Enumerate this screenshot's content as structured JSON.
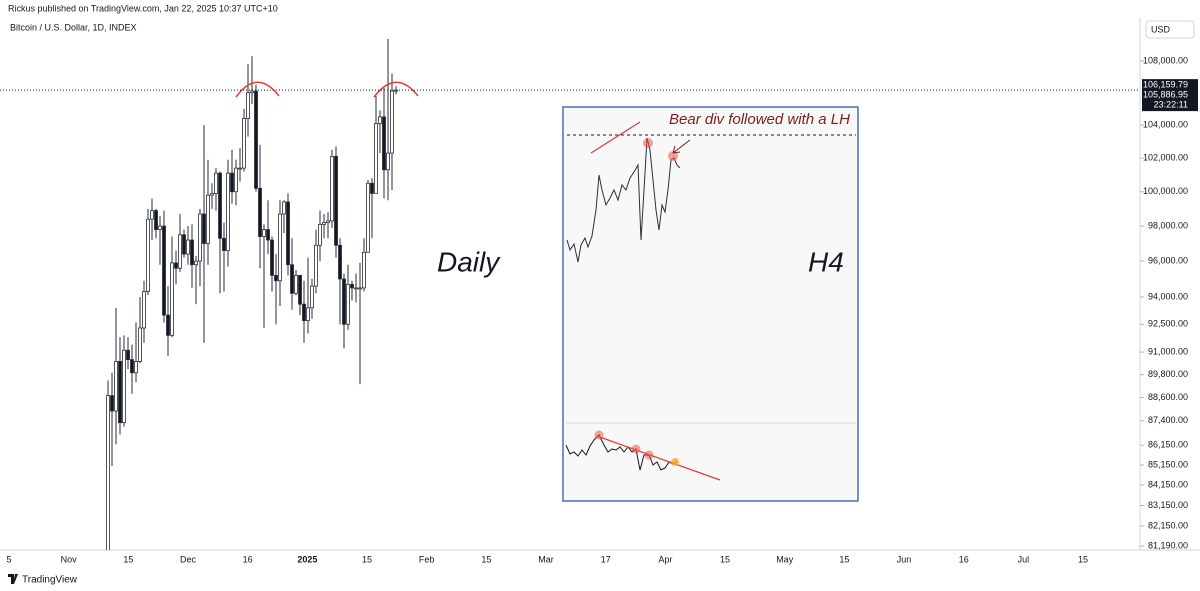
{
  "header": {
    "publisher": "Rickus published on TradingView.com, Jan 22, 2025 10:37 UTC+10",
    "symbol": "Bitcoin / U.S. Dollar, 1D, INDEX",
    "currency": "USD",
    "brand": "TradingView"
  },
  "chart_data": {
    "type": "candlestick",
    "annotations": {
      "daily": "Daily",
      "h4": "H4",
      "note": "Bear div followed with a LH"
    },
    "x_labels": [
      "5",
      "Nov",
      "15",
      "Dec",
      "16",
      "2025",
      "15",
      "Feb",
      "15",
      "Mar",
      "17",
      "Apr",
      "15",
      "May",
      "15",
      "Jun",
      "16",
      "Jul",
      "15"
    ],
    "log_scale": true,
    "ylim": [
      81000,
      110630
    ],
    "yticks": [
      {
        "value": 108000,
        "label": "108,000.00"
      },
      {
        "value": 104000,
        "label": "104,000.00"
      },
      {
        "value": 102000,
        "label": "102,000.00"
      },
      {
        "value": 100000,
        "label": "100,000.00"
      },
      {
        "value": 98000,
        "label": "98,000.00"
      },
      {
        "value": 96000,
        "label": "96,000.00"
      },
      {
        "value": 94000,
        "label": "94,000.00"
      },
      {
        "value": 92500,
        "label": "92,500.00"
      },
      {
        "value": 91000,
        "label": "91,000.00"
      },
      {
        "value": 89800,
        "label": "89,800.00"
      },
      {
        "value": 88600,
        "label": "88,600.00"
      },
      {
        "value": 87400,
        "label": "87,400.00"
      },
      {
        "value": 86150,
        "label": "86,150.00"
      },
      {
        "value": 85150,
        "label": "85,150.00"
      },
      {
        "value": 84150,
        "label": "84,150.00"
      },
      {
        "value": 83150,
        "label": "83,150.00"
      },
      {
        "value": 82150,
        "label": "82,150.00"
      },
      {
        "value": 81190,
        "label": "81,190.00"
      }
    ],
    "last_price": {
      "value": 106159.79,
      "label": "106,159.79"
    },
    "second_price": {
      "value": 105886.95,
      "label": "105,886.95"
    },
    "countdown": "23:22:11",
    "up_color": "#ffffff",
    "down_color": "#131722",
    "wick_color": "#2a2e39",
    "open": [
      80400,
      88700,
      87900,
      90500,
      87300,
      91100,
      90600,
      89900,
      90500,
      92300,
      94300,
      98400,
      98900,
      97800,
      98000,
      93000,
      91900,
      95900,
      95600,
      97500,
      96400,
      97200,
      95800,
      96000,
      98700,
      97000,
      99800,
      99900,
      101100,
      97300,
      96600,
      101100,
      100000,
      101400,
      101400,
      104400,
      106000,
      106100,
      100200,
      97400,
      97800,
      97200,
      95200,
      94900,
      98700,
      99400,
      95800,
      94200,
      95200,
      93600,
      92700,
      93400,
      94600,
      96900,
      98100,
      98200,
      98300,
      102100,
      96900,
      95000,
      92500,
      94700,
      94500,
      94500,
      94500,
      96500,
      100500,
      99900,
      104100,
      104500,
      101300,
      102300,
      106100
    ],
    "high": [
      89500,
      89900,
      93400,
      91800,
      91900,
      91800,
      91400,
      92600,
      94000,
      94900,
      99000,
      99600,
      99000,
      98600,
      98900,
      94600,
      97400,
      96600,
      98700,
      97800,
      98000,
      98100,
      96300,
      99000,
      104000,
      101900,
      100500,
      101400,
      101200,
      98200,
      101900,
      102500,
      101900,
      102600,
      105000,
      107800,
      108300,
      106500,
      102800,
      98100,
      99500,
      97400,
      96400,
      99500,
      99500,
      99900,
      97300,
      95500,
      95200,
      94900,
      96200,
      95000,
      97800,
      98900,
      98700,
      98800,
      102500,
      102700,
      97300,
      95300,
      95800,
      94900,
      95300,
      95900,
      97300,
      100700,
      100800,
      105800,
      104900,
      106300,
      109400,
      107200,
      106400
    ],
    "low": [
      80200,
      85100,
      86200,
      86700,
      87100,
      90100,
      88800,
      89400,
      90400,
      91500,
      94100,
      97200,
      97300,
      95800,
      92600,
      90800,
      91800,
      94700,
      95400,
      96200,
      95800,
      94500,
      93600,
      94600,
      91500,
      95800,
      99000,
      98900,
      94200,
      94300,
      95700,
      99300,
      99200,
      100600,
      101200,
      103300,
      105300,
      100000,
      95600,
      92300,
      96400,
      94300,
      92500,
      93500,
      97600,
      95200,
      93300,
      94100,
      93000,
      91500,
      92000,
      92800,
      94200,
      96000,
      97300,
      97300,
      97900,
      96200,
      92500,
      91200,
      92200,
      93800,
      93700,
      89300,
      94300,
      96500,
      97300,
      99900,
      102300,
      99600,
      99500,
      100100,
      105900
    ],
    "close": [
      88700,
      87900,
      90500,
      87300,
      91100,
      90600,
      89900,
      90500,
      92300,
      94300,
      98400,
      98900,
      97800,
      98000,
      93000,
      91900,
      95900,
      95600,
      97500,
      96400,
      97200,
      95800,
      96000,
      98700,
      97000,
      99800,
      99900,
      101100,
      97300,
      96600,
      101100,
      100000,
      101400,
      101400,
      104400,
      106000,
      106100,
      100200,
      97400,
      97800,
      97200,
      95200,
      94900,
      98700,
      99400,
      95800,
      94200,
      95200,
      93600,
      92700,
      93400,
      94600,
      96900,
      98100,
      98200,
      98300,
      102100,
      96900,
      95000,
      92500,
      94700,
      94500,
      94500,
      94500,
      96500,
      100500,
      99900,
      104100,
      104500,
      101300,
      102300,
      106100,
      106159.79
    ]
  }
}
